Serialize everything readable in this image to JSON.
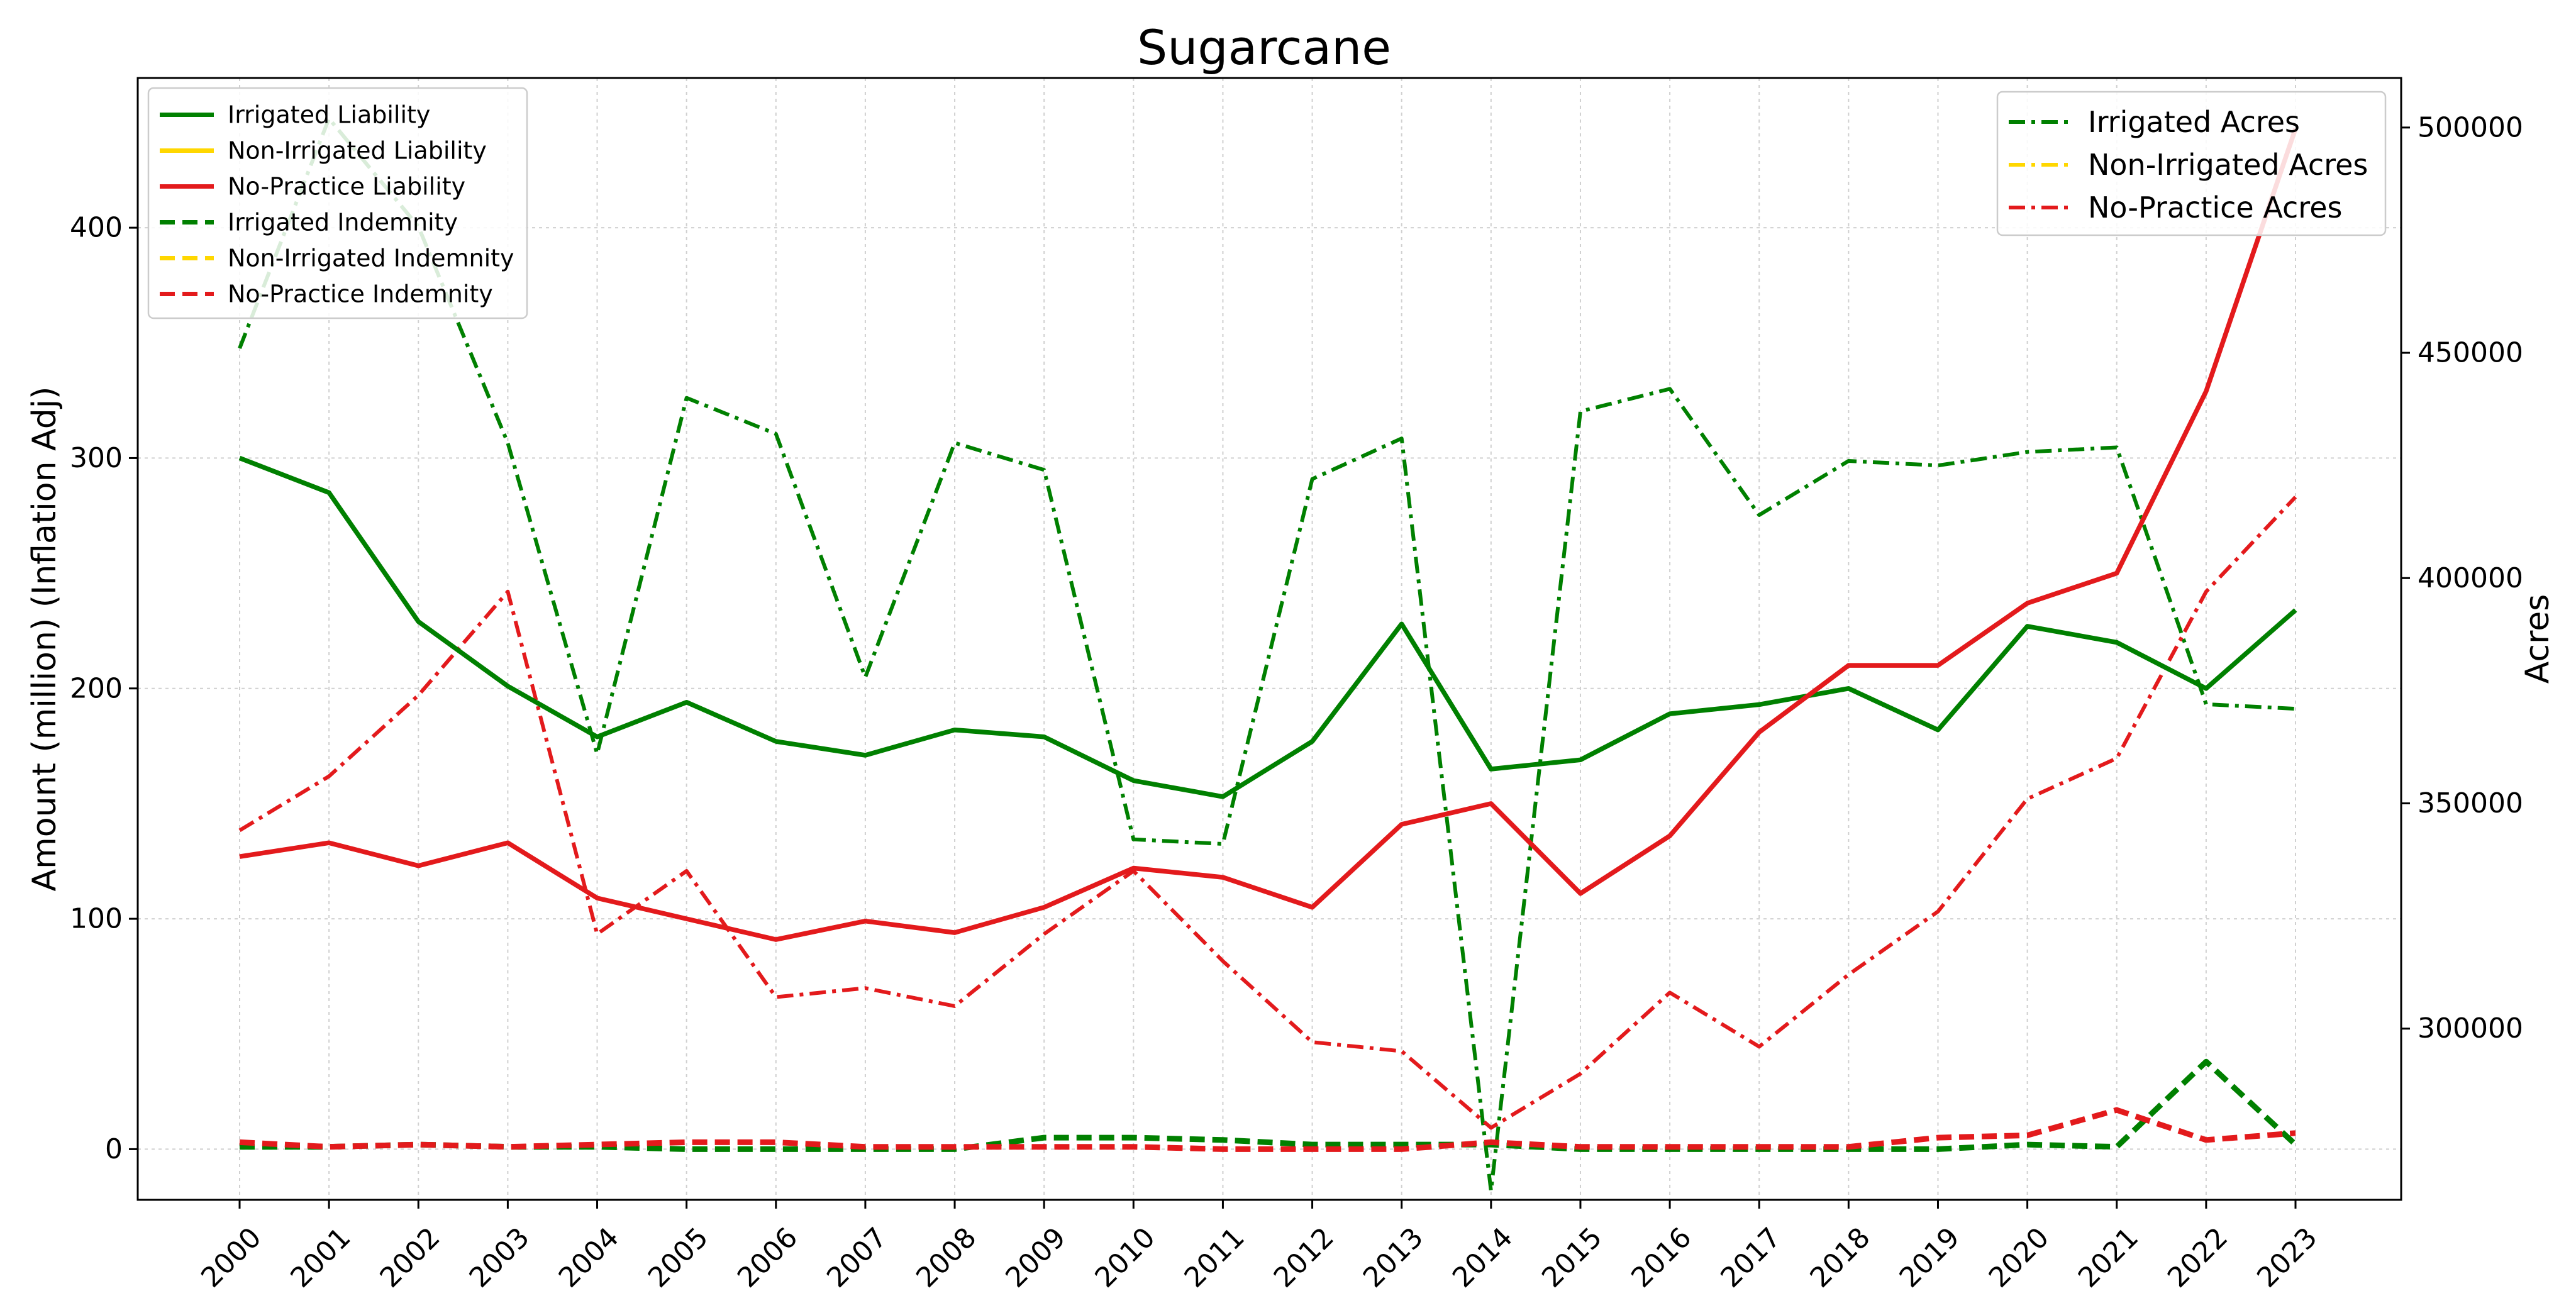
{
  "chart_data": {
    "type": "line",
    "title": "Sugarcane",
    "ylabel": "Amount (million) (Inflation Adj)",
    "y2label": "Acres",
    "x": [
      "2000",
      "2001",
      "2002",
      "2003",
      "2004",
      "2005",
      "2006",
      "2007",
      "2008",
      "2009",
      "2010",
      "2011",
      "2012",
      "2013",
      "2014",
      "2015",
      "2016",
      "2017",
      "2018",
      "2019",
      "2020",
      "2021",
      "2022",
      "2023"
    ],
    "ylim": [
      -22,
      465
    ],
    "y2lim": [
      262000,
      511000
    ],
    "yticks": [
      0,
      100,
      200,
      300,
      400
    ],
    "y2ticks": [
      300000,
      350000,
      400000,
      450000,
      500000
    ],
    "grid": true,
    "legend_left_position": "upper left",
    "legend_right_position": "upper right",
    "colors": {
      "irrigated": "#008000",
      "non_irrigated": "#ffd700",
      "no_practice": "#e31a1c"
    },
    "series_left": [
      {
        "name": "Irrigated Liability",
        "color": "#008000",
        "style": "solid",
        "values": [
          300,
          285,
          229,
          201,
          179,
          194,
          177,
          171,
          182,
          179,
          160,
          153,
          177,
          228,
          165,
          169,
          189,
          193,
          200,
          182,
          227,
          220,
          200,
          234
        ]
      },
      {
        "name": "Non-Irrigated Liability",
        "color": "#ffd700",
        "style": "solid",
        "values": []
      },
      {
        "name": "No-Practice Liability",
        "color": "#e31a1c",
        "style": "solid",
        "values": [
          127,
          133,
          123,
          133,
          109,
          100,
          91,
          99,
          94,
          105,
          122,
          118,
          105,
          141,
          150,
          111,
          136,
          181,
          210,
          210,
          237,
          250,
          329,
          443
        ]
      },
      {
        "name": "Irrigated Indemnity",
        "color": "#008000",
        "style": "dashed",
        "values": [
          1,
          1,
          2,
          1,
          1,
          0,
          0,
          0,
          0,
          5,
          5,
          4,
          2,
          2,
          2,
          0,
          0,
          0,
          0,
          0,
          2,
          1,
          38,
          2
        ]
      },
      {
        "name": "Non-Irrigated Indemnity",
        "color": "#ffd700",
        "style": "dashed",
        "values": []
      },
      {
        "name": "No-Practice Indemnity",
        "color": "#e31a1c",
        "style": "dashed",
        "values": [
          3,
          1,
          2,
          1,
          2,
          3,
          3,
          1,
          1,
          1,
          1,
          0,
          0,
          0,
          3,
          1,
          1,
          1,
          1,
          5,
          6,
          17,
          4,
          7
        ]
      }
    ],
    "series_right": [
      {
        "name": "Irrigated Acres",
        "color": "#008000",
        "style": "dashdot",
        "values": [
          451000,
          502000,
          478000,
          430000,
          361000,
          440000,
          432000,
          378000,
          430000,
          424000,
          342000,
          341000,
          422000,
          431000,
          264000,
          437000,
          442000,
          414000,
          426000,
          425000,
          428000,
          429000,
          372000,
          371000
        ]
      },
      {
        "name": "Non-Irrigated Acres",
        "color": "#ffd700",
        "style": "dashdot",
        "values": []
      },
      {
        "name": "No-Practice Acres",
        "color": "#e31a1c",
        "style": "dashdot",
        "values": [
          344000,
          356000,
          374000,
          397000,
          321000,
          335000,
          307000,
          309000,
          305000,
          321000,
          335000,
          315000,
          297000,
          295000,
          278000,
          290000,
          308000,
          296000,
          312000,
          326000,
          351000,
          360000,
          397000,
          418000
        ]
      }
    ]
  }
}
